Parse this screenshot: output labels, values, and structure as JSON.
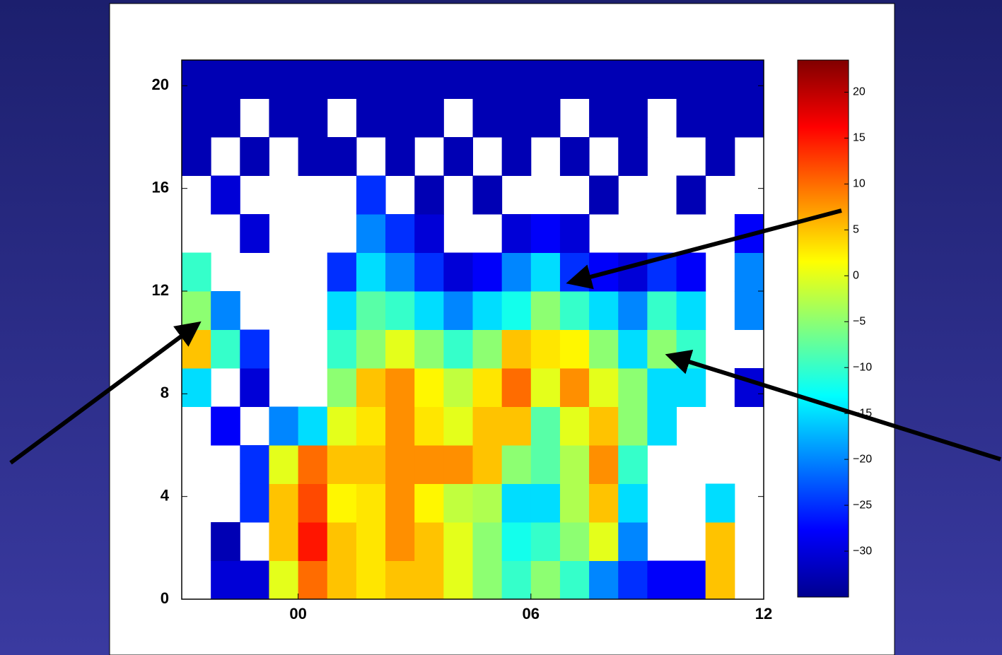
{
  "chart_data": {
    "type": "heatmap",
    "colormap": "jet",
    "xbins": [
      -3,
      -2.25,
      -1.5,
      -0.75,
      0,
      0.75,
      1.5,
      2.25,
      3,
      3.75,
      4.5,
      5.25,
      6,
      6.75,
      7.5,
      8.25,
      9,
      9.75,
      10.5,
      11.25,
      12
    ],
    "ybins": [
      0,
      1.5,
      3,
      4.5,
      6,
      7.5,
      9,
      10.5,
      12,
      13.5,
      15,
      16.5,
      18,
      19.5,
      21
    ],
    "z": [
      [
        null,
        -30,
        -30,
        0,
        10,
        5,
        3,
        5,
        5,
        0,
        -5,
        -10,
        -5,
        -10,
        -20,
        -25,
        -28,
        -28,
        5,
        null
      ],
      [
        null,
        -32,
        null,
        5,
        15,
        5,
        3,
        8,
        5,
        0,
        -5,
        -12,
        -10,
        -5,
        0,
        -20,
        null,
        null,
        5,
        null
      ],
      [
        null,
        null,
        -25,
        5,
        12,
        2,
        3,
        8,
        2,
        -2,
        -3,
        -15,
        -15,
        -3,
        5,
        -15,
        null,
        null,
        -15,
        null
      ],
      [
        null,
        null,
        -25,
        0,
        10,
        5,
        5,
        8,
        8,
        8,
        5,
        -5,
        -8,
        -3,
        8,
        -10,
        null,
        null,
        null,
        null
      ],
      [
        null,
        -28,
        null,
        -20,
        -15,
        0,
        3,
        8,
        3,
        0,
        5,
        5,
        -8,
        0,
        5,
        -5,
        -15,
        null,
        null,
        null
      ],
      [
        -15,
        null,
        -30,
        null,
        null,
        -5,
        5,
        8,
        2,
        -2,
        3,
        10,
        0,
        8,
        0,
        -5,
        -15,
        -15,
        null,
        -30
      ],
      [
        5,
        -10,
        -25,
        null,
        null,
        -10,
        -5,
        0,
        -5,
        -10,
        -5,
        5,
        3,
        2,
        -5,
        -15,
        -5,
        -10,
        null,
        null
      ],
      [
        -5,
        -20,
        null,
        null,
        null,
        -15,
        -8,
        -10,
        -15,
        -20,
        -15,
        -12,
        -5,
        -10,
        -15,
        -20,
        -10,
        -15,
        null,
        -20
      ],
      [
        -10,
        null,
        null,
        null,
        null,
        -25,
        -15,
        -20,
        -25,
        -30,
        -28,
        -20,
        -15,
        -25,
        -28,
        -30,
        -25,
        -28,
        null,
        -20
      ],
      [
        null,
        null,
        -30,
        null,
        null,
        null,
        -20,
        -25,
        -30,
        null,
        null,
        -30,
        -28,
        -30,
        null,
        null,
        null,
        null,
        null,
        -28
      ],
      [
        null,
        -30,
        null,
        null,
        null,
        null,
        -25,
        null,
        -32,
        null,
        -32,
        null,
        null,
        null,
        -32,
        null,
        null,
        -32,
        null,
        null
      ],
      [
        -32,
        null,
        -32,
        null,
        -32,
        -32,
        null,
        -32,
        null,
        -32,
        null,
        -32,
        null,
        -32,
        null,
        -32,
        null,
        null,
        -32,
        null
      ],
      [
        -32,
        -32,
        null,
        -32,
        -32,
        null,
        -32,
        -32,
        -32,
        null,
        -32,
        -32,
        -32,
        null,
        -32,
        -32,
        null,
        -32,
        -32,
        -32
      ],
      [
        -32,
        -32,
        -32,
        -32,
        -32,
        -32,
        -32,
        -32,
        -32,
        -32,
        -32,
        -32,
        -32,
        -32,
        -32,
        -32,
        -32,
        -32,
        -32,
        -32
      ]
    ],
    "xlim": [
      -3,
      12
    ],
    "xticks": [
      {
        "value": 0,
        "label": "00"
      },
      {
        "value": 6,
        "label": "06"
      },
      12
    ],
    "ylim": [
      0,
      21
    ],
    "yticks": [
      0,
      4,
      8,
      12,
      16,
      20
    ],
    "clim": [
      -35,
      23.5
    ],
    "cticks": [
      {
        "value": -30,
        "label": "−30"
      },
      {
        "value": -25,
        "label": "−25"
      },
      {
        "value": -20,
        "label": "−20"
      },
      {
        "value": -15,
        "label": "−15"
      },
      {
        "value": -10,
        "label": "−10"
      },
      {
        "value": -5,
        "label": "−5"
      },
      0,
      5,
      10,
      15,
      20
    ]
  }
}
